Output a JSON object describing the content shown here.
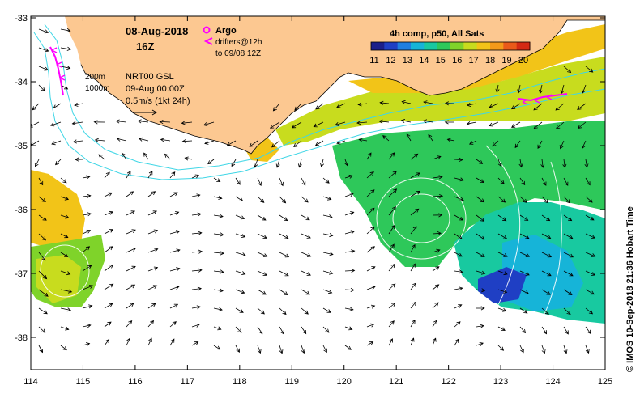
{
  "header": {
    "date": "08-Aug-2018",
    "hour": "16Z"
  },
  "legend_argo": {
    "argo_label": "Argo",
    "drifters_label": "drifters@12h",
    "drifters_to": "to 09/08 12Z",
    "argo_color": "#ff00ff",
    "drifter_color": "#ff00ff"
  },
  "info": {
    "contour_200": "200m",
    "contour_1000": "1000m",
    "product": "NRT00 GSL",
    "time": "09-Aug 00:00Z",
    "scale": "0.5m/s (1kt 24h)"
  },
  "colorbar": {
    "title": "4h comp, p50, All Sats",
    "ticks": [
      "11",
      "12",
      "13",
      "14",
      "15",
      "16",
      "17",
      "18",
      "19",
      "20"
    ],
    "colors": [
      "#1b1f8a",
      "#1f3fc4",
      "#1f7fe0",
      "#16b4d8",
      "#18c9a0",
      "#2ec85a",
      "#7fd32a",
      "#c8dc1e",
      "#f2c418",
      "#f49a1a",
      "#ea5a1a",
      "#d42a14"
    ]
  },
  "axes": {
    "x_ticks": [
      "114",
      "115",
      "116",
      "117",
      "118",
      "119",
      "120",
      "121",
      "122",
      "123",
      "124",
      "125"
    ],
    "y_ticks": [
      "-33",
      "-34",
      "-35",
      "-36",
      "-37",
      "-38"
    ]
  },
  "credit": "© IMOS 10-Sep-2018 21:36 Hobart Time",
  "colors": {
    "land": "#fcc891",
    "isobath": "#3fd6e6",
    "ssh_contour": "#ffffff"
  }
}
